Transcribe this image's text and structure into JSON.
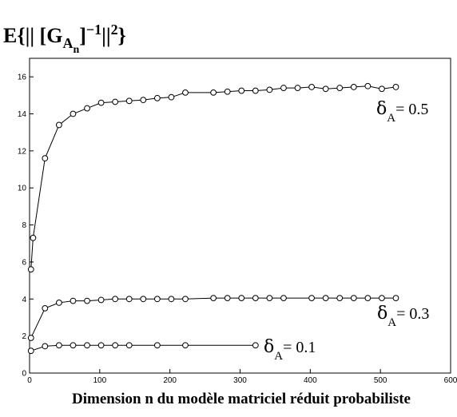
{
  "chart_data": {
    "type": "line",
    "title": {
      "prefix": "E{",
      "bars_open": "|| [",
      "G": "G",
      "sub_A": "A",
      "sub_n": "n",
      "close_bracket": "]",
      "sup_exp": "−1",
      "bars_close": "||",
      "sup_sq": "2",
      "suffix": "}"
    },
    "xlabel": "Dimension n du modèle  matriciel réduit probabiliste",
    "ylabel": "",
    "xlim": [
      0,
      600
    ],
    "ylim": [
      0,
      17
    ],
    "xticks": [
      0,
      100,
      200,
      300,
      400,
      500,
      600
    ],
    "yticks": [
      0,
      2,
      4,
      6,
      8,
      10,
      12,
      14,
      16
    ],
    "grid": false,
    "marker": "circle",
    "line_color": "#000000",
    "series": [
      {
        "label": {
          "symbol": "δ",
          "sub": "A",
          "value": "= 0.5"
        },
        "x": [
          2,
          5,
          22,
          42,
          62,
          82,
          102,
          122,
          142,
          162,
          182,
          202,
          222,
          262,
          282,
          302,
          322,
          342,
          362,
          382,
          402,
          422,
          442,
          462,
          482,
          502,
          522
        ],
        "y": [
          5.6,
          7.3,
          11.6,
          13.4,
          14.0,
          14.3,
          14.6,
          14.65,
          14.7,
          14.75,
          14.85,
          14.9,
          15.15,
          15.15,
          15.2,
          15.25,
          15.25,
          15.3,
          15.4,
          15.4,
          15.45,
          15.35,
          15.4,
          15.45,
          15.5,
          15.35,
          15.45
        ]
      },
      {
        "label": {
          "symbol": "δ",
          "sub": "A",
          "value": "= 0.3"
        },
        "x": [
          2,
          22,
          42,
          62,
          82,
          102,
          122,
          142,
          162,
          182,
          202,
          222,
          262,
          282,
          302,
          322,
          342,
          362,
          402,
          422,
          442,
          462,
          482,
          502,
          522
        ],
        "y": [
          1.9,
          3.5,
          3.8,
          3.9,
          3.9,
          3.95,
          4.0,
          4.0,
          4.0,
          4.0,
          4.0,
          4.0,
          4.05,
          4.05,
          4.05,
          4.05,
          4.05,
          4.05,
          4.05,
          4.05,
          4.05,
          4.05,
          4.05,
          4.05,
          4.05
        ]
      },
      {
        "label": {
          "symbol": "δ",
          "sub": "A",
          "value": "= 0.1"
        },
        "x": [
          2,
          22,
          42,
          62,
          82,
          102,
          122,
          142,
          182,
          222,
          322
        ],
        "y": [
          1.2,
          1.45,
          1.5,
          1.5,
          1.5,
          1.5,
          1.5,
          1.5,
          1.5,
          1.5,
          1.5
        ]
      }
    ]
  }
}
